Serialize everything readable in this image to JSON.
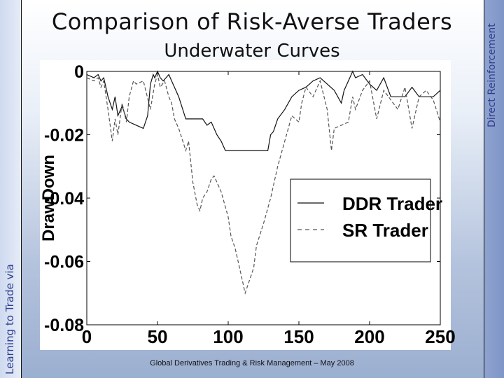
{
  "slide": {
    "title": "Comparison of Risk-Averse Traders",
    "subtitle": "Underwater Curves",
    "left_vertical": "Learning to Trade via",
    "right_vertical": "Direct Reinforcement",
    "footer": "Global Derivatives Trading & Risk Management – May 2008"
  },
  "colors": {
    "ddr": "#111111",
    "sr": "#555555"
  },
  "chart_data": {
    "type": "line",
    "title": "Underwater Curves",
    "xlabel": "",
    "ylabel": "DrawDown",
    "xlim": [
      0,
      250
    ],
    "ylim": [
      -0.08,
      0
    ],
    "xticks": [
      0,
      50,
      100,
      150,
      200,
      250
    ],
    "yticks": [
      0,
      -0.02,
      -0.04,
      -0.06,
      -0.08
    ],
    "xtick_labels": [
      "0",
      "50",
      "100",
      "150",
      "200",
      "250"
    ],
    "ytick_labels": [
      "0",
      "-0.02",
      "-0.04",
      "-0.06",
      "-0.08"
    ],
    "grid": false,
    "legend": "right",
    "series": [
      {
        "name": "DDR Trader",
        "style": "solid",
        "x": [
          0,
          5,
          8,
          10,
          12,
          15,
          18,
          20,
          22,
          25,
          28,
          30,
          35,
          40,
          43,
          45,
          47,
          48,
          50,
          52,
          54,
          56,
          58,
          60,
          65,
          70,
          75,
          78,
          80,
          82,
          85,
          88,
          90,
          92,
          95,
          98,
          100,
          105,
          110,
          115,
          120,
          125,
          128,
          130,
          132,
          135,
          140,
          145,
          150,
          155,
          160,
          165,
          170,
          175,
          180,
          182,
          185,
          188,
          190,
          195,
          200,
          205,
          210,
          215,
          220,
          225,
          230,
          235,
          240,
          245,
          250
        ],
        "y": [
          -0.001,
          -0.002,
          -0.001,
          -0.003,
          -0.002,
          -0.008,
          -0.012,
          -0.008,
          -0.014,
          -0.011,
          -0.015,
          -0.016,
          -0.017,
          -0.018,
          -0.014,
          -0.004,
          -0.001,
          -0.002,
          0,
          -0.002,
          -0.003,
          -0.002,
          -0.001,
          -0.003,
          -0.008,
          -0.015,
          -0.015,
          -0.015,
          -0.015,
          -0.015,
          -0.017,
          -0.016,
          -0.018,
          -0.02,
          -0.022,
          -0.025,
          -0.025,
          -0.025,
          -0.025,
          -0.025,
          -0.025,
          -0.025,
          -0.025,
          -0.02,
          -0.019,
          -0.015,
          -0.012,
          -0.008,
          -0.006,
          -0.005,
          -0.003,
          -0.002,
          -0.004,
          -0.006,
          -0.01,
          -0.006,
          -0.003,
          0,
          -0.002,
          -0.001,
          -0.004,
          -0.006,
          -0.002,
          -0.008,
          -0.008,
          -0.008,
          -0.005,
          -0.008,
          -0.008,
          -0.008,
          -0.006
        ]
      },
      {
        "name": "SR Trader",
        "style": "dashed",
        "x": [
          0,
          5,
          8,
          10,
          12,
          15,
          18,
          20,
          22,
          25,
          28,
          30,
          33,
          35,
          40,
          45,
          48,
          50,
          52,
          55,
          58,
          60,
          62,
          65,
          70,
          72,
          75,
          78,
          80,
          82,
          85,
          88,
          90,
          95,
          100,
          102,
          105,
          108,
          110,
          112,
          115,
          118,
          120,
          125,
          130,
          135,
          140,
          145,
          150,
          152,
          155,
          160,
          165,
          170,
          173,
          175,
          180,
          185,
          188,
          190,
          195,
          200,
          205,
          210,
          215,
          220,
          225,
          230,
          235,
          240,
          245,
          250
        ],
        "y": [
          -0.002,
          -0.003,
          -0.002,
          -0.005,
          -0.003,
          -0.012,
          -0.022,
          -0.015,
          -0.02,
          -0.01,
          -0.016,
          -0.008,
          -0.003,
          -0.004,
          -0.003,
          -0.012,
          -0.004,
          -0.001,
          -0.005,
          -0.003,
          -0.008,
          -0.01,
          -0.015,
          -0.018,
          -0.025,
          -0.022,
          -0.035,
          -0.042,
          -0.044,
          -0.04,
          -0.038,
          -0.034,
          -0.033,
          -0.038,
          -0.046,
          -0.052,
          -0.056,
          -0.062,
          -0.066,
          -0.07,
          -0.066,
          -0.062,
          -0.055,
          -0.048,
          -0.04,
          -0.03,
          -0.022,
          -0.014,
          -0.016,
          -0.01,
          -0.005,
          -0.008,
          -0.003,
          -0.012,
          -0.025,
          -0.018,
          -0.017,
          -0.016,
          -0.008,
          -0.012,
          -0.006,
          -0.003,
          -0.015,
          -0.006,
          -0.009,
          -0.012,
          -0.005,
          -0.018,
          -0.008,
          -0.006,
          -0.009,
          -0.016
        ]
      }
    ]
  }
}
